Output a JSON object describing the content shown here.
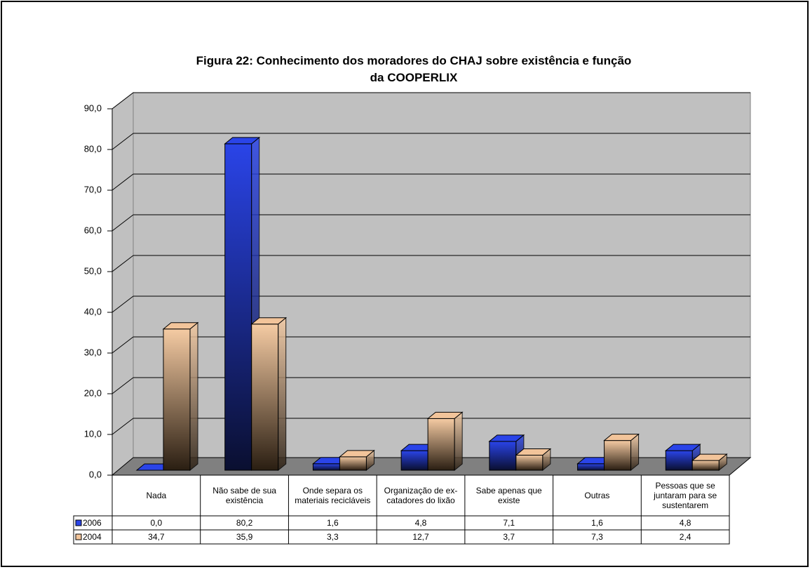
{
  "chart_data": {
    "type": "bar3d",
    "title": "Figura 22: Conhecimento dos moradores do CHAJ sobre existência e função da COOPERLIX",
    "categories": [
      "Nada",
      "Não sabe de sua existência",
      "Onde separa os materiais recicláveis",
      "Organização de ex-catadores do lixão",
      "Sabe apenas que existe",
      "Outras",
      "Pessoas que se juntaram para se sustentarem"
    ],
    "series": [
      {
        "name": "2006",
        "color": "#2a44e8",
        "values": [
          0.0,
          80.2,
          1.6,
          4.8,
          7.1,
          1.6,
          4.8
        ],
        "value_labels": [
          "0,0",
          "80,2",
          "1,6",
          "4,8",
          "7,1",
          "1,6",
          "4,8"
        ]
      },
      {
        "name": "2004",
        "color": "#f2c49a",
        "values": [
          34.7,
          35.9,
          3.3,
          12.7,
          3.7,
          7.3,
          2.4
        ],
        "value_labels": [
          "34,7",
          "35,9",
          "3,3",
          "12,7",
          "3,7",
          "7,3",
          "2,4"
        ]
      }
    ],
    "ylim": [
      0,
      90
    ],
    "yticks": [
      {
        "value": 0,
        "label": "0,0"
      },
      {
        "value": 10,
        "label": "10,0"
      },
      {
        "value": 20,
        "label": "20,0"
      },
      {
        "value": 30,
        "label": "30,0"
      },
      {
        "value": 40,
        "label": "40,0"
      },
      {
        "value": 50,
        "label": "50,0"
      },
      {
        "value": 60,
        "label": "60,0"
      },
      {
        "value": 70,
        "label": "70,0"
      },
      {
        "value": 80,
        "label": "80,0"
      },
      {
        "value": 90,
        "label": "90,0"
      }
    ],
    "grid": true
  }
}
